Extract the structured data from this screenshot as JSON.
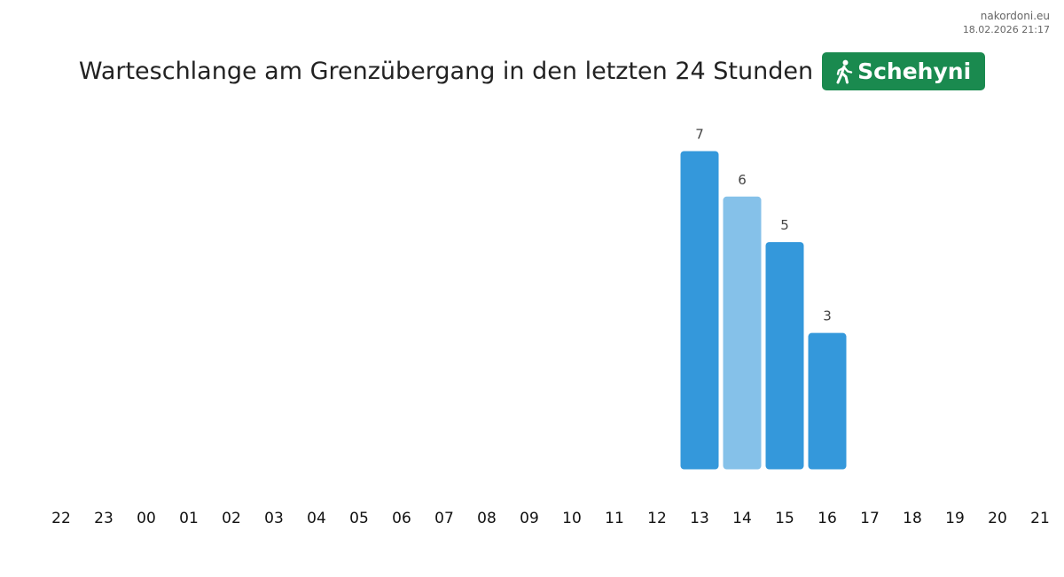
{
  "site": {
    "name": "nakordoni.eu",
    "timestamp": "18.02.2026 21:17"
  },
  "header": {
    "title": "Warteschlange am Grenzübergang in den letzten 24 Stunden",
    "badge_label": "Schehyni",
    "badge_icon": "walking-person-icon",
    "badge_color": "#1a8a4f"
  },
  "chart_data": {
    "type": "bar",
    "title": "Warteschlange am Grenzübergang in den letzten 24 Stunden",
    "categories": [
      "22",
      "23",
      "00",
      "01",
      "02",
      "03",
      "04",
      "05",
      "06",
      "07",
      "08",
      "09",
      "10",
      "11",
      "12",
      "13",
      "14",
      "15",
      "16",
      "17",
      "18",
      "19",
      "20",
      "21"
    ],
    "values": [
      null,
      null,
      null,
      null,
      null,
      null,
      null,
      null,
      null,
      null,
      null,
      null,
      null,
      null,
      null,
      7,
      6,
      5,
      3,
      null,
      null,
      null,
      null,
      null
    ],
    "highlighted_category": "14",
    "colors": {
      "bar": "#3498db",
      "bar_highlight": "#85c1e9",
      "label": "#444444"
    },
    "ylim": [
      0,
      7
    ],
    "grid": false,
    "legend": false,
    "xlabel": "",
    "ylabel": ""
  }
}
